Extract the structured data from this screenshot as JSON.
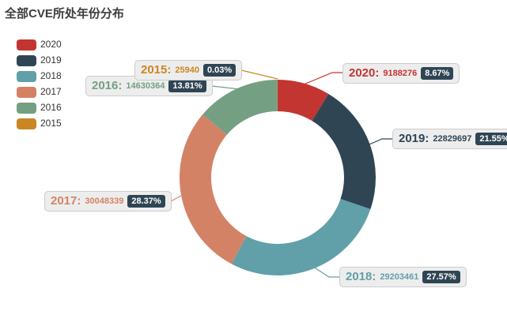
{
  "title": "全部CVE所处年份分布",
  "chart_data": {
    "type": "pie",
    "subtype": "donut",
    "title": "全部CVE所处年份分布",
    "legend_position": "left",
    "start_angle_deg": 0,
    "clockwise": true,
    "inner_radius_ratio": 0.68,
    "badge_color": "#2f4554",
    "badge_text_color": "#ffffff",
    "series": [
      {
        "name": "2020",
        "label": "2020:",
        "value": 9188276,
        "value_text": "9188276",
        "percent": "8.67%",
        "color": "#c23531"
      },
      {
        "name": "2019",
        "label": "2019:",
        "value": 22829697,
        "value_text": "22829697",
        "percent": "21.55%",
        "color": "#2f4554"
      },
      {
        "name": "2018",
        "label": "2018:",
        "value": 29203461,
        "value_text": "29203461",
        "percent": "27.57%",
        "color": "#61a0a8"
      },
      {
        "name": "2017",
        "label": "2017:",
        "value": 30048339,
        "value_text": "30048339",
        "percent": "28.37%",
        "color": "#d48265"
      },
      {
        "name": "2016",
        "label": "2016:",
        "value": 14630364,
        "value_text": "14630364",
        "percent": "13.81%",
        "color": "#749f83"
      },
      {
        "name": "2015",
        "label": "2015:",
        "value": 25940,
        "value_text": "25940",
        "percent": "0.03%",
        "color": "#ca8622"
      }
    ]
  }
}
